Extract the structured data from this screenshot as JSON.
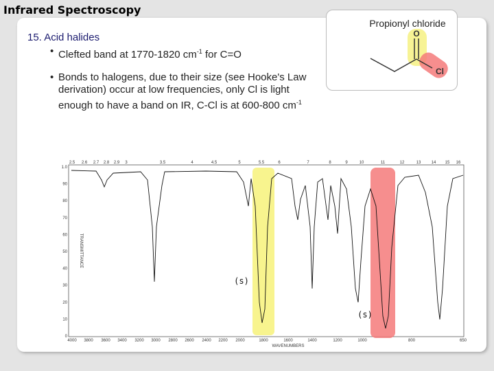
{
  "header": {
    "title": "Infrared Spectroscopy"
  },
  "inset": {
    "title": "Propionyl chloride",
    "atom_o": "O",
    "atom_cl": "Cl"
  },
  "section": {
    "heading": "15.  Acid halides",
    "bullets": [
      {
        "text": "Clefted band at 1770-1820 cm",
        "sup": "-1",
        "tail": " for C=O"
      },
      {
        "text": "Bonds to halogens, due to their size (see Hooke's Law derivation) occur at low frequencies, only Cl is light enough to have a band on IR, C-Cl is at 600-800 cm",
        "sup": "-1"
      }
    ]
  },
  "spectrum": {
    "top_labels": [
      "2.5",
      "2.6",
      "2.7",
      "2.8",
      "2.9",
      "3",
      "3.5",
      "4",
      "4.5",
      "5",
      "5.5",
      "6",
      "7",
      "8",
      "9",
      "10",
      "11",
      "12",
      "13",
      "14",
      "15",
      "16"
    ],
    "bottom_labels": [
      "4000",
      "3800",
      "3600",
      "3400",
      "3200",
      "3000",
      "2800",
      "2600",
      "2400",
      "2200",
      "2000",
      "1800",
      "1600",
      "1400",
      "1200",
      "1000",
      "800",
      "650"
    ],
    "y_labels": [
      "1.0",
      "90",
      "80",
      "70",
      "60",
      "50",
      "40",
      "30",
      "20",
      "10",
      "0"
    ],
    "x_title": "WAVENUMBERS",
    "y_title": "TRANSMITTANCE",
    "annotations": [
      "(s)",
      "(s)"
    ]
  }
}
